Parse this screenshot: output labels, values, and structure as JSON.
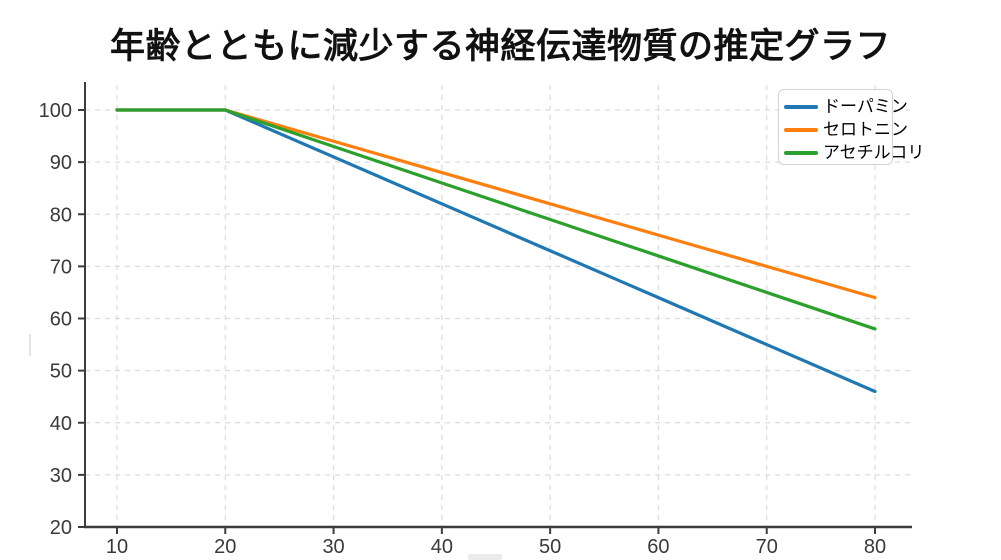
{
  "title": "年齢とともに減少する神経伝達物質の推定グラフ",
  "chart_data": {
    "type": "line",
    "x": [
      10,
      20,
      30,
      40,
      50,
      60,
      70,
      80
    ],
    "series": [
      {
        "name": "ドーパミン",
        "color": "#1f77b4",
        "values": [
          100,
          100,
          91,
          82,
          73,
          64,
          55,
          46
        ]
      },
      {
        "name": "セロトニン",
        "color": "#ff7f0e",
        "values": [
          100,
          100,
          94,
          88,
          82,
          76,
          70,
          64
        ]
      },
      {
        "name": "アセチルコリ",
        "color": "#2ca02c",
        "values": [
          100,
          100,
          93,
          86,
          79,
          72,
          65,
          58
        ]
      }
    ],
    "x_ticks": [
      10,
      20,
      30,
      40,
      50,
      60,
      70,
      80
    ],
    "y_ticks": [
      20,
      30,
      40,
      50,
      60,
      70,
      80,
      90,
      100
    ],
    "xlim": [
      7,
      87
    ],
    "ylim": [
      20,
      104
    ],
    "grid": true,
    "grid_style": "dashed",
    "legend_position": "top-right",
    "axis_color": "#3c3c3c",
    "grid_color": "#dcdcdc",
    "tick_label_color": "#3a3a3a"
  }
}
